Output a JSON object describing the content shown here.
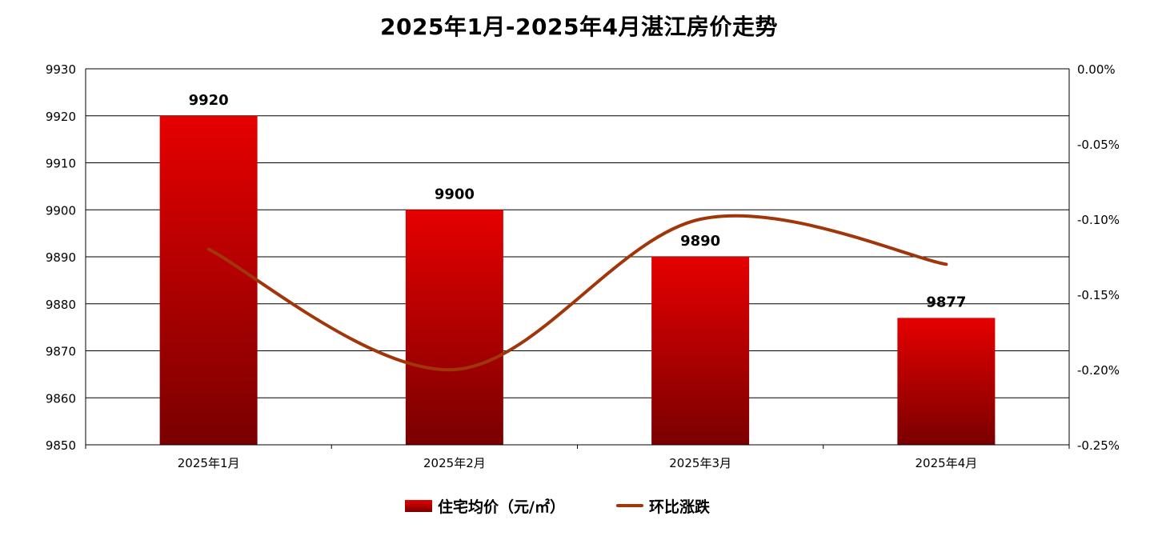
{
  "chart_data": {
    "type": "bar",
    "title": "2025年1月-2025年4月湛江房价走势",
    "categories": [
      "2025年1月",
      "2025年2月",
      "2025年3月",
      "2025年4月"
    ],
    "series": [
      {
        "name": "住宅均价（元/㎡）",
        "type": "bar",
        "axis": "left",
        "values": [
          9920,
          9900,
          9890,
          9877
        ],
        "data_labels": [
          "9920",
          "9900",
          "9890",
          "9877"
        ]
      },
      {
        "name": "环比涨跌",
        "type": "line",
        "axis": "right",
        "smooth": true,
        "values": [
          -0.12,
          -0.2,
          -0.1,
          -0.13
        ]
      }
    ],
    "y_left": {
      "min": 9850,
      "max": 9930,
      "step": 10,
      "ticks": [
        "9850",
        "9860",
        "9870",
        "9880",
        "9890",
        "9900",
        "9910",
        "9920",
        "9930"
      ]
    },
    "y_right": {
      "min": -0.25,
      "max": 0.0,
      "step": 0.05,
      "unit": "%",
      "ticks": [
        "-0.25%",
        "-0.20%",
        "-0.15%",
        "-0.10%",
        "-0.05%",
        "0.00%"
      ]
    },
    "grid": true,
    "legend_position": "bottom-center",
    "colors": {
      "bar_top": "#e60000",
      "bar_bottom": "#7a0000",
      "line": "#a0360a",
      "grid": "#000000",
      "axis_text": "#000000"
    }
  },
  "legend": {
    "bar_label": "住宅均价（元/㎡）",
    "line_label": "环比涨跌"
  }
}
